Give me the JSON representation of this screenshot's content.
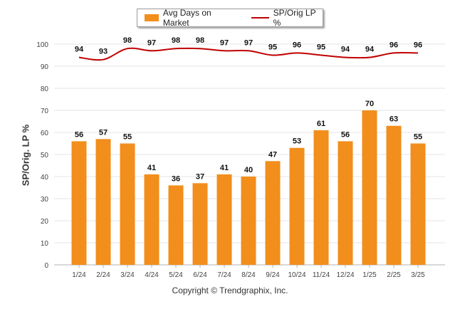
{
  "legend": {
    "bar_label": "Avg Days on Market",
    "line_label": "SP/Orig LP %"
  },
  "footer": "Copyright © Trendgraphix, Inc.",
  "colors": {
    "bar": "#F28E1C",
    "line": "#C00000",
    "grid": "#e6e6e6"
  },
  "chart_data": {
    "type": "bar",
    "title": "",
    "ylabel": "SP/Orig. LP %",
    "xlabel": "",
    "ylim": [
      0,
      100
    ],
    "yticks": [
      0,
      10,
      20,
      30,
      40,
      50,
      60,
      70,
      80,
      90,
      100
    ],
    "grid": true,
    "legend_position": "top-center",
    "categories": [
      "1/24",
      "2/24",
      "3/24",
      "4/24",
      "5/24",
      "6/24",
      "7/24",
      "8/24",
      "9/24",
      "10/24",
      "11/24",
      "12/24",
      "1/25",
      "2/25",
      "3/25"
    ],
    "series": [
      {
        "name": "Avg Days on Market",
        "type": "bar",
        "values": [
          56,
          57,
          55,
          41,
          36,
          37,
          41,
          40,
          47,
          53,
          61,
          56,
          70,
          63,
          55
        ]
      },
      {
        "name": "SP/Orig LP %",
        "type": "line",
        "values": [
          94,
          93,
          98,
          97,
          98,
          98,
          97,
          97,
          95,
          96,
          95,
          94,
          94,
          96,
          96
        ]
      }
    ]
  }
}
